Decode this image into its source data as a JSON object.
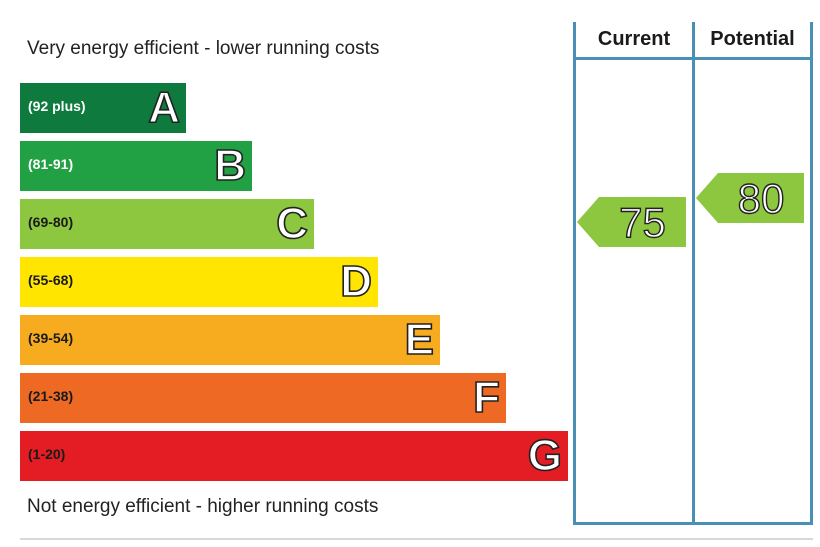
{
  "chart_data": {
    "type": "bar",
    "header_top": "Very energy efficient - lower running costs",
    "header_bottom": "Not energy efficient - higher running costs",
    "columns": [
      "Current",
      "Potential"
    ],
    "bands": [
      {
        "letter": "A",
        "range": "(92 plus)",
        "color": "#0e7a3e",
        "range_color": "#ffffff"
      },
      {
        "letter": "B",
        "range": "(81-91)",
        "color": "#21a044",
        "range_color": "#ffffff"
      },
      {
        "letter": "C",
        "range": "(69-80)",
        "color": "#8dc63f",
        "range_color": "#1a1a1a"
      },
      {
        "letter": "D",
        "range": "(55-68)",
        "color": "#ffe500",
        "range_color": "#1a1a1a"
      },
      {
        "letter": "E",
        "range": "(39-54)",
        "color": "#f7ab1e",
        "range_color": "#1a1a1a"
      },
      {
        "letter": "F",
        "range": "(21-38)",
        "color": "#ee6a24",
        "range_color": "#1a1a1a"
      },
      {
        "letter": "G",
        "range": "(1-20)",
        "color": "#e31d23",
        "range_color": "#1a1a1a"
      }
    ],
    "ratings": [
      {
        "column": "Current",
        "value": 75,
        "label": "75",
        "band": "C",
        "color": "#8dc63f"
      },
      {
        "column": "Potential",
        "value": 80,
        "label": "80",
        "band": "C",
        "color": "#8dc63f"
      }
    ]
  }
}
